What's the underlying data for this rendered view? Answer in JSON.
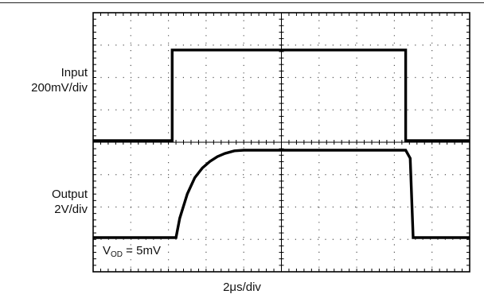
{
  "chart_data": {
    "type": "line",
    "title": "",
    "xlabel": "2μs/div",
    "grid": true,
    "divisions": {
      "x": 10,
      "y": 8
    },
    "channels": [
      {
        "name": "Input",
        "scale": "200mV/div"
      },
      {
        "name": "Output",
        "scale": "2V/div"
      }
    ],
    "series": [
      {
        "x_div": [
          0,
          2.1,
          2.1,
          8.3,
          8.3,
          10
        ],
        "y_div": [
          0,
          0,
          2.8,
          2.8,
          0,
          0
        ]
      },
      {
        "x_div": [
          0,
          2.2,
          2.3,
          2.5,
          2.7,
          2.9,
          3.1,
          3.3,
          3.5,
          3.75,
          4.0,
          8.3,
          8.42,
          8.5,
          10
        ],
        "y_div": [
          0,
          0,
          0.6,
          1.35,
          1.85,
          2.15,
          2.35,
          2.5,
          2.6,
          2.68,
          2.7,
          2.7,
          2.45,
          0,
          0
        ]
      }
    ],
    "annotations": {
      "vod": {
        "prefix": "V",
        "sub": "OD",
        "suffix": " = 5mV"
      }
    }
  },
  "labels": {
    "input_name": "Input",
    "input_scale": "200mV/div",
    "output_name": "Output",
    "output_scale": "2V/div",
    "time_scale": "2μs/div"
  },
  "colors": {
    "trace": "#000000",
    "frame": "#000000",
    "grid": "#555555"
  }
}
